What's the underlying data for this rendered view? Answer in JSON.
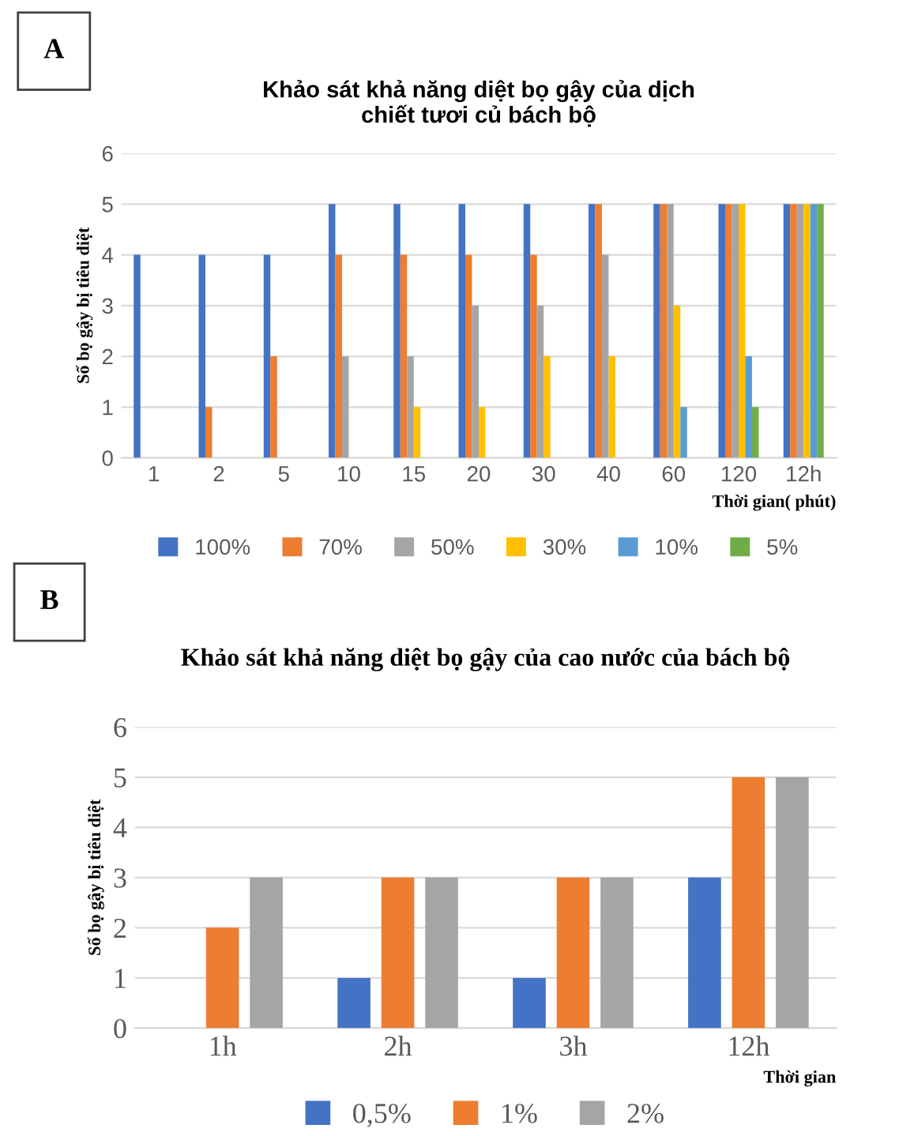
{
  "chart_data": [
    {
      "type": "bar",
      "title": "Khảo sát khả năng diệt bọ gậy của dịch\nchiết tươi củ bách bộ",
      "xlabel": "Thời gian( phút)",
      "ylabel": "Số bọ gậy bị tiêu diệt",
      "annotations": [
        "A"
      ],
      "categories": [
        "1",
        "2",
        "5",
        "10",
        "15",
        "20",
        "30",
        "40",
        "60",
        "120",
        "12h"
      ],
      "series": [
        {
          "name": "100%",
          "color": "#4472c4",
          "values": [
            4,
            4,
            4,
            5,
            5,
            5,
            5,
            5,
            5,
            5,
            5
          ]
        },
        {
          "name": "70%",
          "color": "#ed7d31",
          "values": [
            0,
            1,
            2,
            4,
            4,
            4,
            4,
            5,
            5,
            5,
            5
          ]
        },
        {
          "name": "50%",
          "color": "#a5a5a5",
          "values": [
            0,
            0,
            0,
            2,
            2,
            3,
            3,
            4,
            5,
            5,
            5
          ]
        },
        {
          "name": "30%",
          "color": "#ffc000",
          "values": [
            0,
            0,
            0,
            0,
            1,
            1,
            2,
            2,
            3,
            5,
            5
          ]
        },
        {
          "name": "10%",
          "color": "#5b9bd5",
          "values": [
            0,
            0,
            0,
            0,
            0,
            0,
            0,
            0,
            1,
            2,
            5
          ]
        },
        {
          "name": "5%",
          "color": "#70ad47",
          "values": [
            0,
            0,
            0,
            0,
            0,
            0,
            0,
            0,
            0,
            1,
            5
          ]
        }
      ],
      "ylim": [
        0,
        6
      ],
      "yticks": [
        0,
        1,
        2,
        3,
        4,
        5,
        6
      ],
      "grid": "y",
      "legend": "bottom"
    },
    {
      "type": "bar",
      "title": "Khảo sát khả năng diệt bọ gậy của cao nước của bách bộ",
      "xlabel": "Thời gian",
      "ylabel": "Số bọ gậy bị tiêu diệt",
      "annotations": [
        "B"
      ],
      "categories": [
        "1h",
        "2h",
        "3h",
        "12h"
      ],
      "series": [
        {
          "name": "0,5%",
          "color": "#4472c4",
          "values": [
            0,
            1,
            1,
            3
          ]
        },
        {
          "name": "1%",
          "color": "#ed7d31",
          "values": [
            2,
            3,
            3,
            5
          ]
        },
        {
          "name": "2%",
          "color": "#a5a5a5",
          "values": [
            3,
            3,
            3,
            5
          ]
        }
      ],
      "ylim": [
        0,
        6
      ],
      "yticks": [
        0,
        1,
        2,
        3,
        4,
        5,
        6
      ],
      "grid": "y",
      "legend": "bottom"
    }
  ]
}
